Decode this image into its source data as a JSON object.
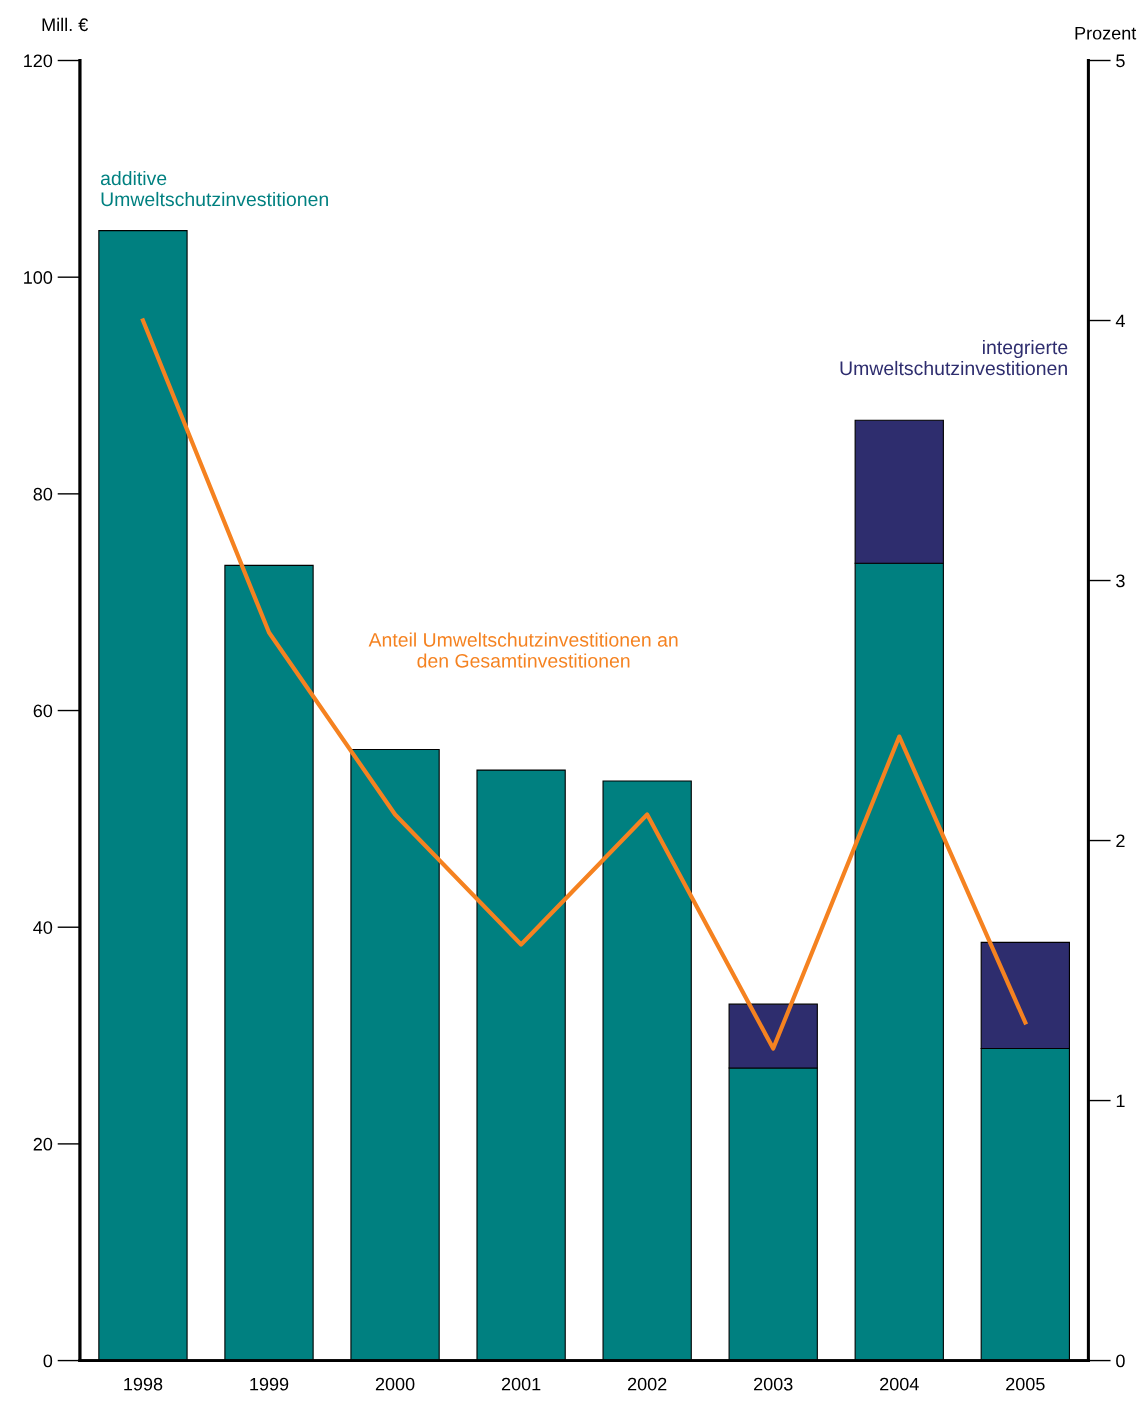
{
  "chart_data": {
    "type": "bar",
    "stacked": true,
    "ylabel": "Mill. €",
    "y2label": "Prozent",
    "categories": [
      "1998",
      "1999",
      "2000",
      "2001",
      "2002",
      "2003",
      "2004",
      "2005"
    ],
    "series": [
      {
        "name": "additive Umweltschutzinvestitionen",
        "color": "#008080",
        "values": [
          104.3,
          73.4,
          56.4,
          54.5,
          53.5,
          27.0,
          73.6,
          28.8
        ]
      },
      {
        "name": "integrierte Umweltschutzinvestitionen",
        "color": "#2e2d6e",
        "values": [
          null,
          null,
          null,
          null,
          null,
          5.9,
          13.2,
          9.8
        ]
      },
      {
        "name": "Anteil Umweltschutzinvestitionen an den Gesamtinvestitionen",
        "type": "line",
        "axis": "y2",
        "color": "#f58220",
        "values": [
          4.0,
          2.8,
          2.1,
          1.6,
          2.1,
          1.2,
          2.4,
          1.3
        ]
      }
    ],
    "ylim": [
      0,
      120
    ],
    "yticks": [
      0,
      20,
      40,
      60,
      80,
      100,
      120
    ],
    "y2lim": [
      0,
      5
    ],
    "y2ticks": [
      0,
      1,
      2,
      3,
      4,
      5
    ],
    "grid": false,
    "legend": false
  }
}
